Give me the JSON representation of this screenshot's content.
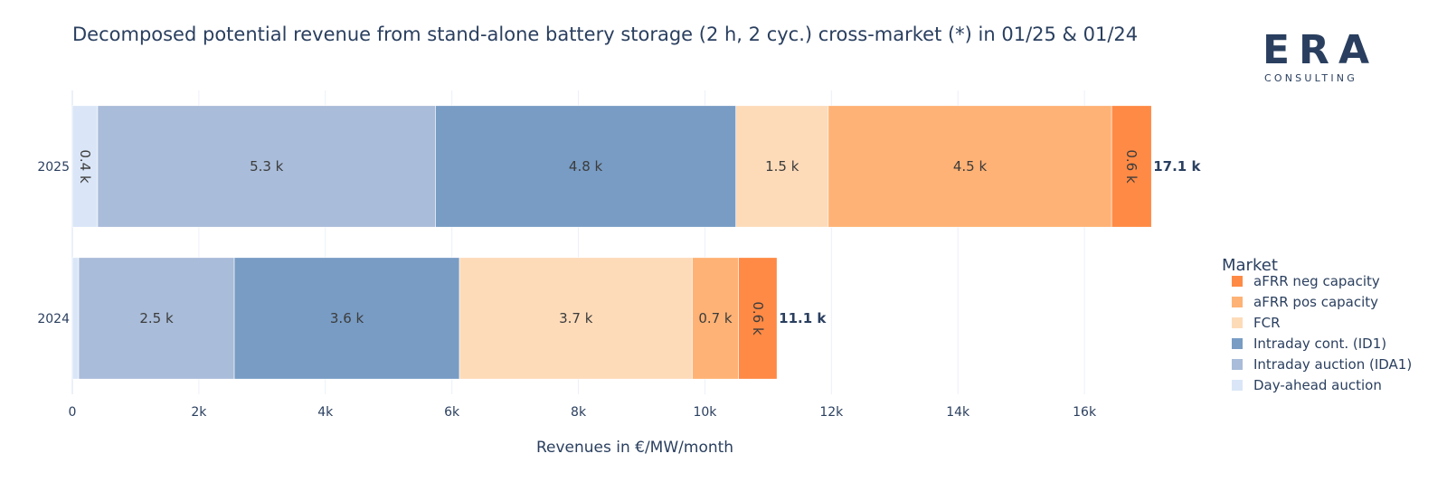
{
  "chart_data": {
    "type": "bar",
    "orientation": "horizontal",
    "barmode": "stack",
    "title": "Decomposed potential revenue from stand-alone battery storage (2 h, 2 cyc.) cross-market (*) in 01/25 & 01/24",
    "xlabel": "Revenues in €/MW/month",
    "ylabel": "",
    "xlim": [
      0,
      17700
    ],
    "x_ticks": [
      0,
      2000,
      4000,
      6000,
      8000,
      10000,
      12000,
      14000,
      16000
    ],
    "x_tick_labels": [
      "0",
      "2k",
      "4k",
      "6k",
      "8k",
      "10k",
      "12k",
      "14k",
      "16k"
    ],
    "categories": [
      "2025",
      "2024"
    ],
    "legend_title": "Market",
    "series": [
      {
        "name": "Day-ahead auction",
        "color": "#dae6f7",
        "values": [
          400,
          100
        ],
        "labels": [
          "0.4 k",
          ""
        ],
        "rotated": [
          true,
          false
        ]
      },
      {
        "name": "Intraday auction (IDA1)",
        "color": "#a9bcd9",
        "values": [
          5340,
          2460
        ],
        "labels": [
          "5.3 k",
          "2.5 k"
        ],
        "rotated": [
          false,
          false
        ]
      },
      {
        "name": "Intraday cont. (ID1)",
        "color": "#789cc4",
        "values": [
          4750,
          3560
        ],
        "labels": [
          "4.8 k",
          "3.6 k"
        ],
        "rotated": [
          false,
          false
        ]
      },
      {
        "name": "FCR",
        "color": "#fddbb9",
        "values": [
          1460,
          3680
        ],
        "labels": [
          "1.5 k",
          "3.7 k"
        ],
        "rotated": [
          false,
          false
        ]
      },
      {
        "name": "aFRR pos capacity",
        "color": "#ffb275",
        "values": [
          4480,
          730
        ],
        "labels": [
          "4.5 k",
          "0.7 k"
        ],
        "rotated": [
          false,
          false
        ]
      },
      {
        "name": "aFRR neg capacity",
        "color": "#ff8a45",
        "values": [
          630,
          610
        ],
        "labels": [
          "0.6 k",
          "0.6 k"
        ],
        "rotated": [
          true,
          true
        ]
      }
    ],
    "totals": [
      "17.1 k",
      "11.1 k"
    ],
    "legend_order": [
      "aFRR neg capacity",
      "aFRR pos capacity",
      "FCR",
      "Intraday cont. (ID1)",
      "Intraday auction (IDA1)",
      "Day-ahead auction"
    ]
  },
  "logo": {
    "name": "ERA",
    "subtitle": "CONSULTING",
    "color": "#2a3f5f"
  }
}
